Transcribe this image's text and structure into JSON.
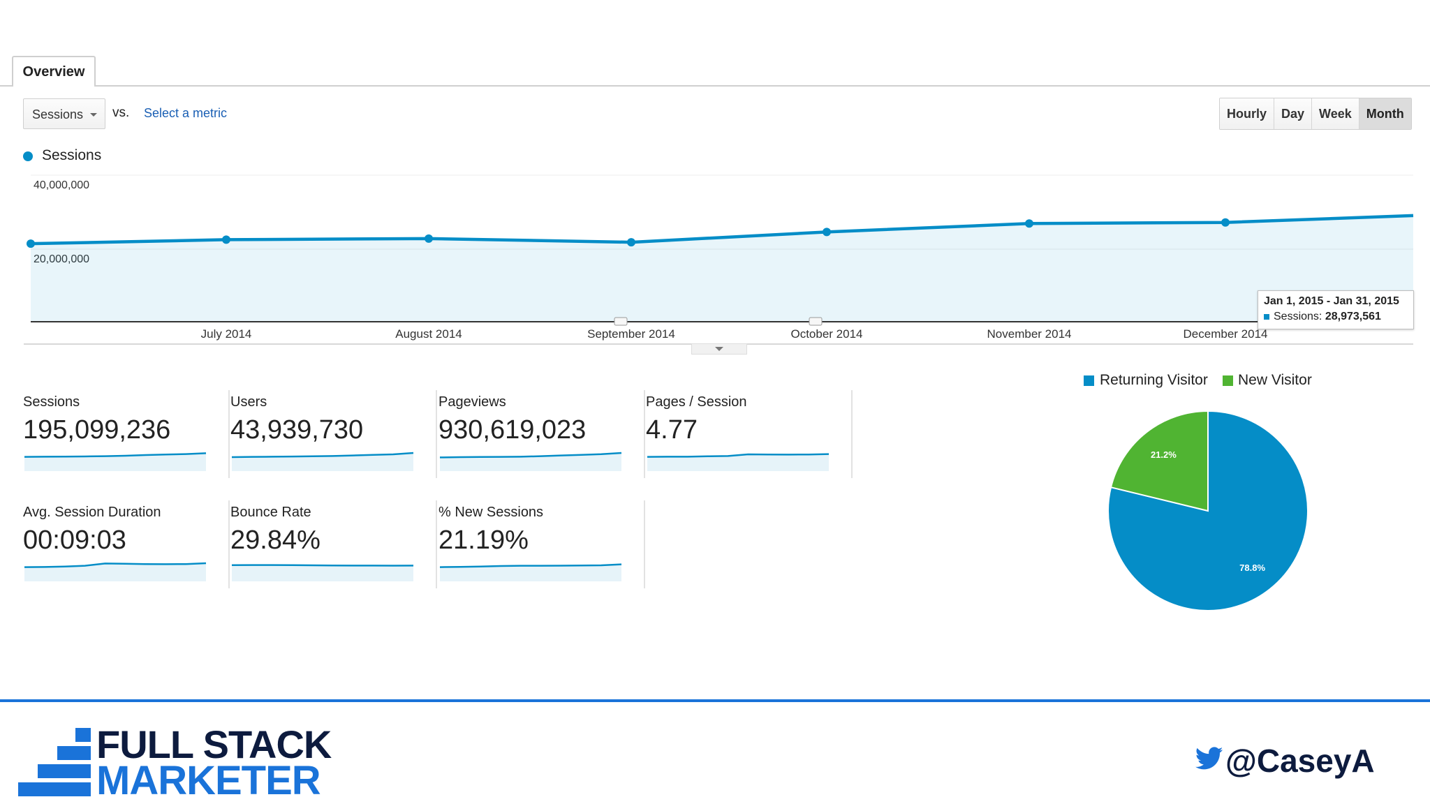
{
  "tabs": {
    "overview": "Overview"
  },
  "metric_picker": {
    "selected": "Sessions",
    "vs": "vs.",
    "select_metric": "Select a metric"
  },
  "granularity": {
    "buttons": [
      "Hourly",
      "Day",
      "Week",
      "Month"
    ],
    "active": "Month"
  },
  "legend": {
    "series": "Sessions"
  },
  "chart_data": {
    "type": "line",
    "title": "",
    "series": [
      {
        "name": "Sessions",
        "color": "#058dc7",
        "points": [
          {
            "x": "Jun 2014",
            "y": 21300000
          },
          {
            "x": "Jul 2014",
            "y": 22400000
          },
          {
            "x": "Aug 2014",
            "y": 22700000
          },
          {
            "x": "Sep 2014",
            "y": 21700000
          },
          {
            "x": "Oct 2014",
            "y": 24500000
          },
          {
            "x": "Nov 2014",
            "y": 26800000
          },
          {
            "x": "Dec 2014",
            "y": 27100000
          },
          {
            "x": "Jan 2015",
            "y": 28973561
          }
        ]
      }
    ],
    "x_tick_labels": [
      "July 2014",
      "August 2014",
      "September 2014",
      "October 2014",
      "November 2014",
      "December 2014"
    ],
    "y_tick_labels": [
      "40,000,000",
      "20,000,000"
    ],
    "ylim": [
      0,
      40000000
    ],
    "grid": true,
    "annotation_markers_at": [
      "September 2014",
      "October 2014"
    ]
  },
  "tooltip": {
    "range": "Jan 1, 2015 - Jan 31, 2015",
    "label": "Sessions:",
    "value": "28,973,561"
  },
  "scorecards": [
    {
      "label": "Sessions",
      "value": "195,099,236",
      "trend": [
        0.3,
        0.33,
        0.35,
        0.38,
        0.42,
        0.5,
        0.62,
        0.72,
        0.8,
        0.95
      ]
    },
    {
      "label": "Users",
      "value": "43,939,730",
      "trend": [
        0.25,
        0.3,
        0.33,
        0.36,
        0.4,
        0.45,
        0.55,
        0.65,
        0.75,
        1.0
      ]
    },
    {
      "label": "Pageviews",
      "value": "930,619,023",
      "trend": [
        0.2,
        0.25,
        0.28,
        0.3,
        0.32,
        0.42,
        0.55,
        0.65,
        0.78,
        1.0
      ]
    },
    {
      "label": "Pages / Session",
      "value": "4.77",
      "trend": [
        0.3,
        0.32,
        0.33,
        0.4,
        0.45,
        0.75,
        0.72,
        0.7,
        0.72,
        0.8
      ]
    },
    {
      "label": "Avg. Session Duration",
      "value": "00:09:03",
      "trend": [
        0.3,
        0.33,
        0.4,
        0.55,
        0.95,
        0.9,
        0.85,
        0.82,
        0.85,
        1.0
      ]
    },
    {
      "label": "Bounce Rate",
      "value": "29.84%",
      "trend": [
        0.65,
        0.67,
        0.68,
        0.65,
        0.62,
        0.6,
        0.58,
        0.57,
        0.56,
        0.58
      ]
    },
    {
      "label": "% New Sessions",
      "value": "21.19%",
      "trend": [
        0.3,
        0.35,
        0.4,
        0.5,
        0.55,
        0.55,
        0.56,
        0.6,
        0.62,
        0.8
      ]
    }
  ],
  "pie": {
    "legend": [
      {
        "label": "Returning Visitor",
        "color": "#058dc7"
      },
      {
        "label": "New Visitor",
        "color": "#50b432"
      }
    ],
    "slices": [
      {
        "label": "Returning Visitor",
        "value": 78.8,
        "text": "78.8%",
        "color": "#058dc7"
      },
      {
        "label": "New Visitor",
        "value": 21.2,
        "text": "21.2%",
        "color": "#50b432"
      }
    ]
  },
  "branding": {
    "line1": "FULL STACK",
    "line2": "MARKETER",
    "handle": "@CaseyA",
    "accent": "#1a73d9"
  }
}
